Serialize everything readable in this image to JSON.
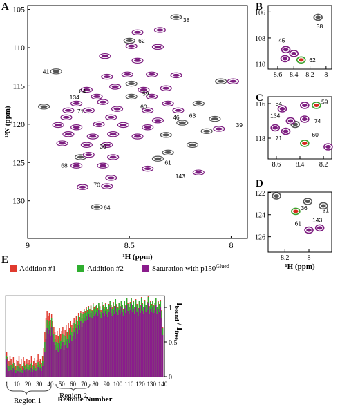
{
  "chart_data": [
    {
      "type": "scatter",
      "panel": "A",
      "x_label": "¹H (ppm)",
      "y_label": "¹⁵N (ppm)",
      "xlim": [
        9.0,
        7.92
      ],
      "ylim": [
        134.9,
        104.5
      ],
      "xticks": [
        9,
        8.5,
        8
      ],
      "yticks": [
        105,
        110,
        115,
        120,
        125,
        130
      ],
      "series": [
        {
          "color": "#555555",
          "x": [
            8.27,
            8.5,
            8.86,
            8.49,
            8.49,
            8.16,
            8.19,
            8.08,
            8.92,
            8.32,
            8.24,
            8.12,
            8.66,
            8.05,
            8.74,
            8.31,
            8.36
          ],
          "y": [
            106.0,
            109.1,
            113.1,
            116.4,
            114.7,
            117.3,
            122.7,
            119.3,
            117.7,
            121.4,
            119.8,
            120.9,
            130.8,
            114.4,
            124.3,
            123.7,
            124.5
          ]
        },
        {
          "color": "#7d1e80",
          "x": [
            8.46,
            8.35,
            8.49,
            8.36,
            8.62,
            8.46,
            8.51,
            8.39,
            8.27,
            8.61,
            8.57,
            8.43,
            8.32,
            8.71,
            8.66,
            8.39,
            8.76,
            8.63,
            8.31,
            8.8,
            8.7,
            8.56,
            8.41,
            8.26,
            8.81,
            8.59,
            8.36,
            8.85,
            8.76,
            8.65,
            8.53,
            8.41,
            8.8,
            8.68,
            8.58,
            8.46,
            8.83,
            8.71,
            8.61,
            8.7,
            8.58,
            8.76,
            8.63,
            8.41,
            8.16,
            8.59,
            8.73,
            8.61,
            8.06,
            7.99
          ],
          "y": [
            108.0,
            107.7,
            109.8,
            109.9,
            111.1,
            111.7,
            113.5,
            113.5,
            113.6,
            113.8,
            115.1,
            115.5,
            115.3,
            115.5,
            116.4,
            116.4,
            117.3,
            117.1,
            117.3,
            118.2,
            118.2,
            118.0,
            118.2,
            118.2,
            119.1,
            119.1,
            119.5,
            120.1,
            120.4,
            120.0,
            120.1,
            120.4,
            121.3,
            121.6,
            121.3,
            121.6,
            122.5,
            122.7,
            122.7,
            124.0,
            124.3,
            125.4,
            125.4,
            125.8,
            126.3,
            127.0,
            128.2,
            128.1,
            120.6,
            114.4
          ]
        }
      ],
      "annotations": [
        {
          "text": "38",
          "x": 8.22,
          "y": 106.4
        },
        {
          "text": "62",
          "x": 8.44,
          "y": 109.1
        },
        {
          "text": "41",
          "x": 8.91,
          "y": 113.1
        },
        {
          "text": "59",
          "x": 8.42,
          "y": 116.0
        },
        {
          "text": "84",
          "x": 8.73,
          "y": 115.7
        },
        {
          "text": "134",
          "x": 8.77,
          "y": 116.5
        },
        {
          "text": "71",
          "x": 8.74,
          "y": 118.3
        },
        {
          "text": "60",
          "x": 8.43,
          "y": 117.7
        },
        {
          "text": "46",
          "x": 8.27,
          "y": 119.1
        },
        {
          "text": "63",
          "x": 8.19,
          "y": 118.9
        },
        {
          "text": "39",
          "x": 7.96,
          "y": 120.1
        },
        {
          "text": "68",
          "x": 8.82,
          "y": 125.4
        },
        {
          "text": "36",
          "x": 8.63,
          "y": 122.9
        },
        {
          "text": "61",
          "x": 8.31,
          "y": 125.0
        },
        {
          "text": "143",
          "x": 8.25,
          "y": 126.8
        },
        {
          "text": "70",
          "x": 8.66,
          "y": 127.9
        },
        {
          "text": "64",
          "x": 8.61,
          "y": 130.9
        }
      ]
    },
    {
      "type": "scatter",
      "panel": "B",
      "xlim": [
        8.72,
        7.93
      ],
      "ylim": [
        110.4,
        105.5
      ],
      "xticks": [
        8.6,
        8.4,
        8.2,
        8
      ],
      "yticks": [
        106,
        108,
        110
      ],
      "series": [
        {
          "color": "#555555",
          "x": [
            8.1
          ],
          "y": [
            106.4
          ]
        },
        {
          "color": "#7d1e80",
          "x": [
            8.5,
            8.4,
            8.51
          ],
          "y": [
            108.9,
            109.2,
            109.6
          ]
        },
        {
          "color": "#d62a1c",
          "edgecolor": "#3aa02a",
          "x": [
            8.31
          ],
          "y": [
            109.7
          ]
        }
      ],
      "annotations": [
        {
          "text": "38",
          "x": 8.08,
          "y": 107.1
        },
        {
          "text": "45",
          "x": 8.55,
          "y": 108.2
        },
        {
          "text": "62",
          "x": 8.17,
          "y": 109.7
        }
      ]
    },
    {
      "type": "scatter",
      "panel": "C",
      "xlim": [
        8.67,
        8.13
      ],
      "ylim": [
        119.2,
        115.6
      ],
      "xticks": [
        8.6,
        8.4,
        8.2
      ],
      "yticks": [
        116,
        118
      ],
      "series": [
        {
          "color": "#555555",
          "x": [
            8.44
          ],
          "y": [
            117.2
          ]
        },
        {
          "color": "#7d1e80",
          "x": [
            8.55,
            8.36,
            8.48,
            8.36,
            8.61,
            8.52,
            8.16
          ],
          "y": [
            116.3,
            116.1,
            117.0,
            116.9,
            117.4,
            117.6,
            118.5
          ]
        },
        {
          "color": "#d62a1c",
          "edgecolor": "#3aa02a",
          "x": [
            8.26,
            8.36
          ],
          "y": [
            116.1,
            118.3
          ]
        }
      ],
      "annotations": [
        {
          "text": "84",
          "x": 8.58,
          "y": 116.0
        },
        {
          "text": "59",
          "x": 8.19,
          "y": 115.9
        },
        {
          "text": "134",
          "x": 8.61,
          "y": 116.7
        },
        {
          "text": "74",
          "x": 8.25,
          "y": 117.0
        },
        {
          "text": "71",
          "x": 8.58,
          "y": 118.0
        },
        {
          "text": "60",
          "x": 8.27,
          "y": 117.8
        }
      ]
    },
    {
      "type": "scatter",
      "panel": "D",
      "x_label": "¹H (ppm)",
      "xlim": [
        8.34,
        7.81
      ],
      "ylim": [
        127.4,
        121.95
      ],
      "xticks": [
        8.2,
        8
      ],
      "yticks": [
        122,
        124,
        126
      ],
      "series": [
        {
          "color": "#555555",
          "x": [
            8.01,
            7.88,
            8.27
          ],
          "y": [
            122.8,
            123.2,
            122.3
          ]
        },
        {
          "color": "#7d1e80",
          "x": [
            8.0,
            7.91
          ],
          "y": [
            125.4,
            125.2
          ]
        },
        {
          "color": "#d62a1c",
          "edgecolor": "#3aa02a",
          "x": [
            8.11
          ],
          "y": [
            123.7
          ]
        }
      ],
      "annotations": [
        {
          "text": "36",
          "x": 8.04,
          "y": 123.4
        },
        {
          "text": "31",
          "x": 7.86,
          "y": 123.6
        },
        {
          "text": "61",
          "x": 8.09,
          "y": 124.8
        },
        {
          "text": "143",
          "x": 7.93,
          "y": 124.5
        }
      ]
    },
    {
      "type": "bar",
      "panel": "E",
      "x_label": "Residue Number",
      "y_axis_side": "right",
      "y_label": [
        {
          "text": "I",
          "sub": "bound"
        },
        {
          "text": " / I",
          "sub": "free"
        }
      ],
      "regions": [
        "Region 1",
        "Region 2"
      ],
      "xlim": [
        0,
        141.5
      ],
      "ylim": [
        0,
        1.17
      ],
      "xticks": [
        1,
        10,
        20,
        30,
        40,
        50,
        60,
        70,
        80,
        90,
        100,
        110,
        120,
        130,
        140
      ],
      "yticks": [
        0,
        0.5,
        1
      ],
      "x": [
        1,
        2,
        3,
        4,
        5,
        6,
        7,
        8,
        9,
        10,
        11,
        12,
        13,
        14,
        15,
        16,
        17,
        18,
        19,
        20,
        21,
        22,
        23,
        24,
        25,
        26,
        27,
        28,
        29,
        30,
        31,
        32,
        33,
        34,
        35,
        36,
        37,
        38,
        39,
        40,
        41,
        42,
        43,
        44,
        45,
        46,
        47,
        48,
        49,
        50,
        51,
        52,
        53,
        54,
        55,
        56,
        57,
        58,
        59,
        60,
        61,
        62,
        63,
        64,
        65,
        66,
        67,
        68,
        69,
        70,
        71,
        72,
        73,
        74,
        75,
        76,
        77,
        78,
        79,
        80,
        81,
        82,
        83,
        84,
        85,
        86,
        87,
        88,
        89,
        90,
        91,
        92,
        93,
        94,
        95,
        96,
        97,
        98,
        99,
        100,
        101,
        102,
        103,
        104,
        105,
        106,
        107,
        108,
        109,
        110,
        111,
        112,
        113,
        114,
        115,
        116,
        117,
        118,
        119,
        120,
        121,
        122,
        123,
        124,
        125,
        126,
        127,
        128,
        129,
        130,
        131,
        132,
        133,
        134,
        135,
        136,
        137,
        138,
        139,
        140
      ],
      "series": [
        {
          "name": "Addition #1",
          "color": "#e03a2e",
          "values": [
            0.35,
            0.28,
            0.22,
            0.3,
            0.25,
            0.18,
            0.28,
            0.2,
            0.15,
            0.24,
            0.22,
            0.3,
            0.18,
            0.25,
            0.15,
            0.28,
            0.22,
            0.17,
            0.26,
            0.2,
            0.24,
            0.18,
            0.3,
            0.16,
            0.22,
            0.27,
            0.19,
            0.24,
            0.32,
            0.22,
            0.26,
            0.2,
            0.3,
            0.42,
            0.65,
            0.85,
            0.95,
            0.88,
            0.92,
            0.82,
            0.9,
            0.8,
            0.72,
            0.65,
            0.6,
            0.66,
            0.58,
            0.7,
            0.62,
            0.66,
            0.72,
            0.6,
            0.68,
            0.75,
            0.65,
            0.78,
            0.7,
            0.8,
            0.74,
            0.78,
            0.85,
            0.76,
            0.88,
            0.8,
            0.92,
            0.86,
            0.95,
            0.9,
            0.94,
            0.98,
            0.95,
            1.0,
            0.96,
            1.02,
            0.98,
            1.03,
            0.97,
            1.06,
            1.0,
            1.02,
            1.04,
            0.99,
            1.07,
            1.02,
            0.96,
            1.08,
            1.03,
            1.0,
            1.06,
            1.01,
            0.98,
            1.05,
            1.1,
            1.03,
            1.0,
            1.08,
            1.02,
            1.12,
            1.05,
            1.0,
            1.07,
            1.02,
            1.1,
            1.04,
            0.98,
            1.09,
            1.03,
            1.13,
            1.06,
            1.01,
            1.08,
            1.14,
            1.04,
            1.09,
            1.01,
            1.12,
            1.05,
            0.99,
            1.1,
            1.03,
            1.15,
            1.06,
            1.01,
            1.11,
            1.04,
            1.08,
            1.16,
            1.02,
            1.09,
            1.05,
            1.1,
            1.03,
            1.07,
            1.14,
            1.01,
            1.09,
            1.05,
            1.11,
            0.97,
            0.72
          ]
        },
        {
          "name": "Addition #2",
          "color": "#2fae2f",
          "values": [
            0.3,
            0.18,
            0.15,
            0.22,
            0.16,
            0.12,
            0.2,
            0.14,
            0.1,
            0.17,
            0.15,
            0.2,
            0.12,
            0.16,
            0.1,
            0.19,
            0.15,
            0.11,
            0.18,
            0.14,
            0.16,
            0.12,
            0.2,
            0.11,
            0.15,
            0.18,
            0.13,
            0.16,
            0.21,
            0.15,
            0.18,
            0.14,
            0.22,
            0.3,
            0.5,
            0.68,
            0.82,
            0.75,
            0.8,
            0.7,
            0.85,
            0.72,
            0.62,
            0.55,
            0.5,
            0.55,
            0.48,
            0.6,
            0.52,
            0.56,
            0.62,
            0.5,
            0.58,
            0.65,
            0.55,
            0.68,
            0.6,
            0.72,
            0.65,
            0.7,
            0.78,
            0.68,
            0.82,
            0.75,
            0.88,
            0.8,
            0.92,
            0.85,
            0.9,
            0.96,
            0.92,
            0.98,
            0.93,
            1.0,
            0.96,
            1.02,
            0.95,
            1.05,
            0.98,
            1.0,
            1.03,
            0.97,
            1.06,
            1.0,
            0.94,
            1.08,
            1.02,
            0.98,
            1.05,
            1.0,
            0.96,
            1.04,
            1.1,
            1.02,
            0.98,
            1.07,
            1.0,
            1.12,
            1.04,
            0.99,
            1.06,
            1.01,
            1.1,
            1.03,
            0.97,
            1.09,
            1.02,
            1.13,
            1.05,
            1.0,
            1.07,
            1.14,
            1.03,
            1.08,
            1.0,
            1.11,
            1.04,
            0.98,
            1.09,
            1.02,
            1.14,
            1.05,
            1.0,
            1.1,
            1.03,
            1.07,
            1.15,
            1.01,
            1.08,
            1.04,
            1.1,
            1.02,
            1.06,
            1.13,
            1.0,
            1.08,
            1.04,
            1.1,
            0.95,
            0.7
          ]
        },
        {
          "name": "Saturation with p150",
          "name_sup": "Glued",
          "color": "#8a1c8c",
          "values": [
            0.25,
            0.12,
            0.08,
            0.15,
            0.1,
            0.06,
            0.12,
            0.09,
            0.05,
            0.1,
            0.08,
            0.14,
            0.07,
            0.1,
            0.05,
            0.12,
            0.09,
            0.06,
            0.11,
            0.08,
            0.1,
            0.07,
            0.13,
            0.06,
            0.09,
            0.12,
            0.08,
            0.1,
            0.14,
            0.09,
            0.12,
            0.08,
            0.15,
            0.2,
            0.35,
            0.55,
            0.7,
            0.62,
            0.68,
            0.58,
            0.72,
            0.6,
            0.5,
            0.45,
            0.38,
            0.42,
            0.35,
            0.48,
            0.4,
            0.44,
            0.5,
            0.38,
            0.46,
            0.52,
            0.42,
            0.55,
            0.48,
            0.6,
            0.52,
            0.58,
            0.65,
            0.55,
            0.7,
            0.62,
            0.75,
            0.68,
            0.8,
            0.72,
            0.78,
            0.85,
            0.8,
            0.88,
            0.82,
            0.9,
            0.86,
            0.92,
            0.85,
            0.95,
            0.88,
            0.9,
            0.93,
            0.87,
            0.96,
            0.9,
            0.84,
            0.98,
            0.92,
            0.88,
            0.95,
            0.9,
            0.86,
            0.94,
            1.0,
            0.92,
            0.88,
            0.97,
            0.9,
            1.02,
            0.94,
            0.89,
            0.96,
            0.91,
            1.0,
            0.93,
            0.87,
            0.99,
            0.92,
            1.03,
            0.95,
            0.9,
            0.97,
            1.05,
            0.93,
            0.98,
            0.9,
            1.01,
            0.94,
            0.88,
            0.99,
            0.92,
            1.04,
            0.95,
            0.9,
            1.0,
            0.93,
            0.97,
            1.06,
            0.91,
            0.98,
            0.94,
            1.0,
            0.92,
            0.96,
            1.03,
            0.9,
            0.98,
            0.94,
            1.0,
            0.85,
            0.6
          ]
        }
      ]
    }
  ]
}
